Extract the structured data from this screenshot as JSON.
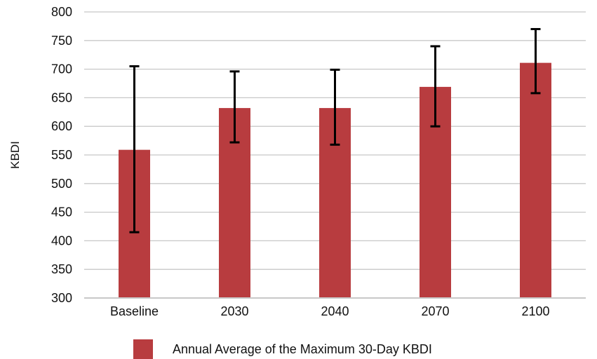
{
  "chart_data": {
    "type": "bar",
    "categories": [
      "Baseline",
      "2030",
      "2040",
      "2070",
      "2100"
    ],
    "series": [
      {
        "name": "Annual Average of the Maximum 30-Day KBDI",
        "values": [
          559,
          632,
          632,
          669,
          711
        ],
        "error_low": [
          415,
          572,
          568,
          600,
          658
        ],
        "error_high": [
          705,
          696,
          699,
          740,
          770
        ],
        "color": "#b83c3f"
      }
    ],
    "title": "",
    "xlabel": "",
    "ylabel": "KBDI",
    "ylim": [
      300,
      800
    ],
    "yticks": [
      300,
      350,
      400,
      450,
      500,
      550,
      600,
      650,
      700,
      750,
      800
    ],
    "grid": true,
    "legend_position": "bottom"
  }
}
